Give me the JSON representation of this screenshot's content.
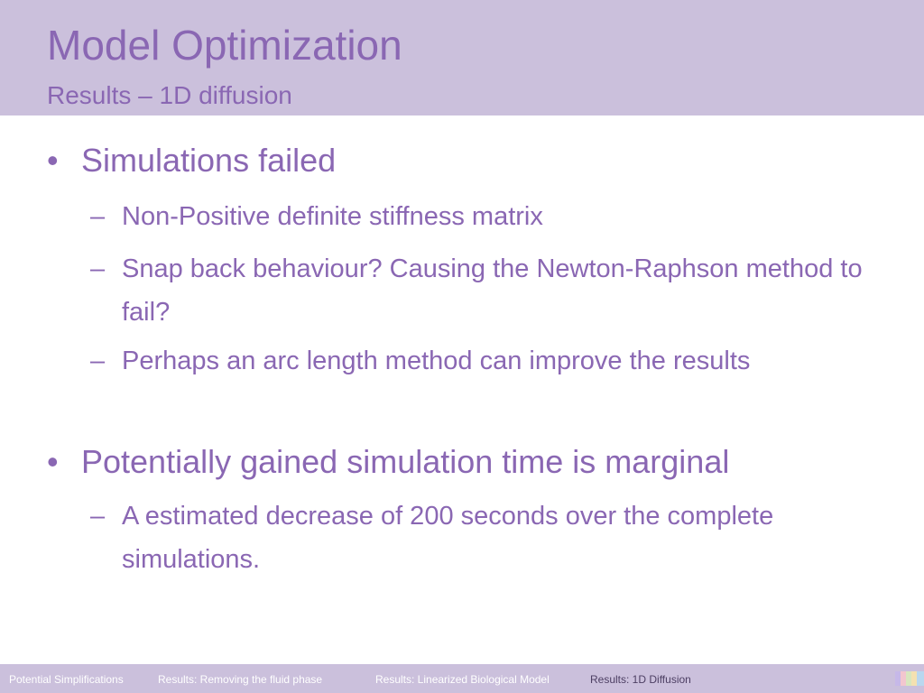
{
  "header": {
    "title": "Model Optimization",
    "subtitle": "Results – 1D diffusion"
  },
  "content": {
    "items": [
      {
        "marker": "•",
        "text": "Simulations failed"
      },
      {
        "marker": "–",
        "text": "Non-Positive definite stiffness matrix"
      },
      {
        "marker": "–",
        "text": "Snap back behaviour? Causing the Newton-Raphson method to fail?"
      },
      {
        "marker": "–",
        "text": "Perhaps an arc length method can improve the results"
      },
      {
        "marker": "•",
        "text": "Potentially gained simulation time is marginal"
      },
      {
        "marker": "–",
        "text": "A estimated decrease of 200 seconds over the complete simulations."
      }
    ]
  },
  "footer": {
    "items": [
      "Potential Simplifications",
      "Results: Removing the fluid phase",
      "Results: Linearized Biological Model",
      "Results: 1D Diffusion"
    ],
    "active_index": 3
  },
  "colors": {
    "header_bg": "#cbc0dc",
    "accent_text": "#8a67b3",
    "footer_bg": "#cbc0dc",
    "footer_text": "#ffffff",
    "footer_active_text": "#4d3f63"
  },
  "decorations": {
    "palette_icon": "palette-swatch-icon"
  }
}
